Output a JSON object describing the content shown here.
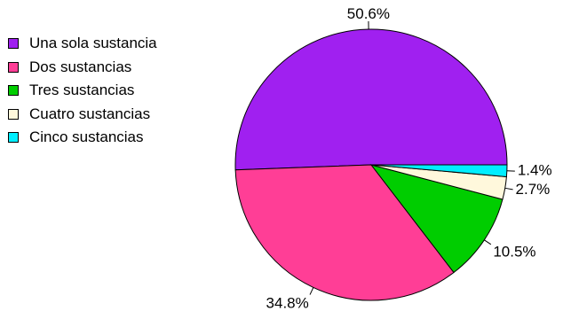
{
  "chart_data": {
    "type": "pie",
    "series": [
      {
        "name": "Una sola sustancia",
        "value": 50.6,
        "label": "50.6%",
        "color": "#A020F0"
      },
      {
        "name": "Dos sustancias",
        "value": 34.8,
        "label": "34.8%",
        "color": "#FF3E96"
      },
      {
        "name": "Tres sustancias",
        "value": 10.5,
        "label": "10.5%",
        "color": "#00CD00"
      },
      {
        "name": "Cuatro sustancias",
        "value": 2.7,
        "label": "2.7%",
        "color": "#FFF8DC"
      },
      {
        "name": "Cinco sustancias",
        "value": 1.4,
        "label": "1.4%",
        "color": "#00EEFF"
      }
    ],
    "direction": "counterclockwise",
    "start_position": "right",
    "legend_position": "top-left",
    "title": ""
  }
}
